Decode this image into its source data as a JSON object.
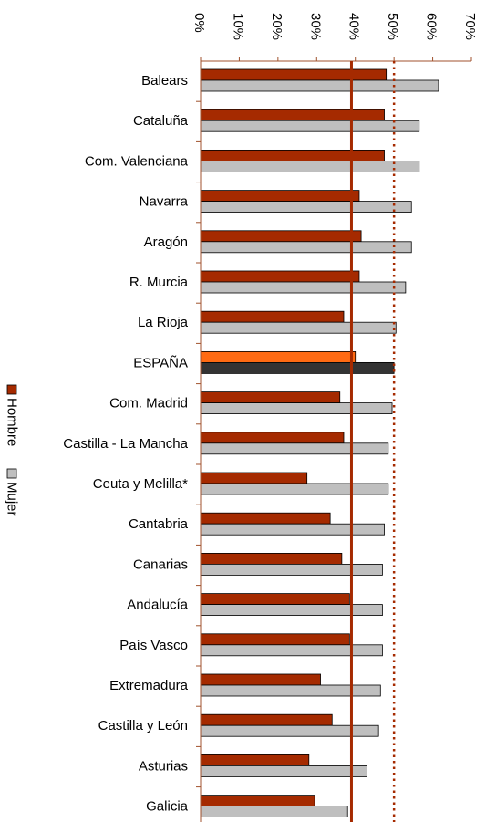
{
  "chart_data": {
    "type": "bar",
    "orientation": "horizontal",
    "title": "",
    "xlabel": "",
    "ylabel": "",
    "xlim": [
      0,
      70
    ],
    "tick_values": [
      0,
      10,
      20,
      30,
      40,
      50,
      60,
      70
    ],
    "tick_suffix": "%",
    "grid": false,
    "legend_position": "left",
    "categories": [
      "Balears",
      "Cataluña",
      "Com. Valenciana",
      "Navarra",
      "Aragón",
      "R. Murcia",
      "La Rioja",
      "ESPAÑA",
      "Com. Madrid",
      "Castilla - La Mancha",
      "Ceuta y Melilla*",
      "Cantabria",
      "Canarias",
      "Andalucía",
      "País Vasco",
      "Extremadura",
      "Castilla y León",
      "Asturias",
      "Galicia"
    ],
    "series": [
      {
        "name": "Hombre",
        "color": "#a52a00",
        "highlight_color": "#ff6a13",
        "values": [
          48,
          47.5,
          47.5,
          41,
          41.5,
          41,
          37,
          40,
          36,
          37,
          27.5,
          33.5,
          36.5,
          38.5,
          38.5,
          31,
          34,
          28,
          29.5
        ]
      },
      {
        "name": "Mujer",
        "color": "#bfbfbf",
        "highlight_color": "#333333",
        "values": [
          61.5,
          56.5,
          56.5,
          54.5,
          54.5,
          53,
          50.5,
          50,
          49.5,
          48.5,
          48.5,
          47.5,
          47,
          47,
          47,
          46.5,
          46,
          43,
          38
        ]
      }
    ],
    "highlight_category": "ESPAÑA",
    "reference_lines": [
      {
        "value": 39,
        "style": "solid",
        "color": "#a52a00"
      },
      {
        "value": 50,
        "style": "dotted",
        "color": "#a52a00"
      }
    ]
  }
}
